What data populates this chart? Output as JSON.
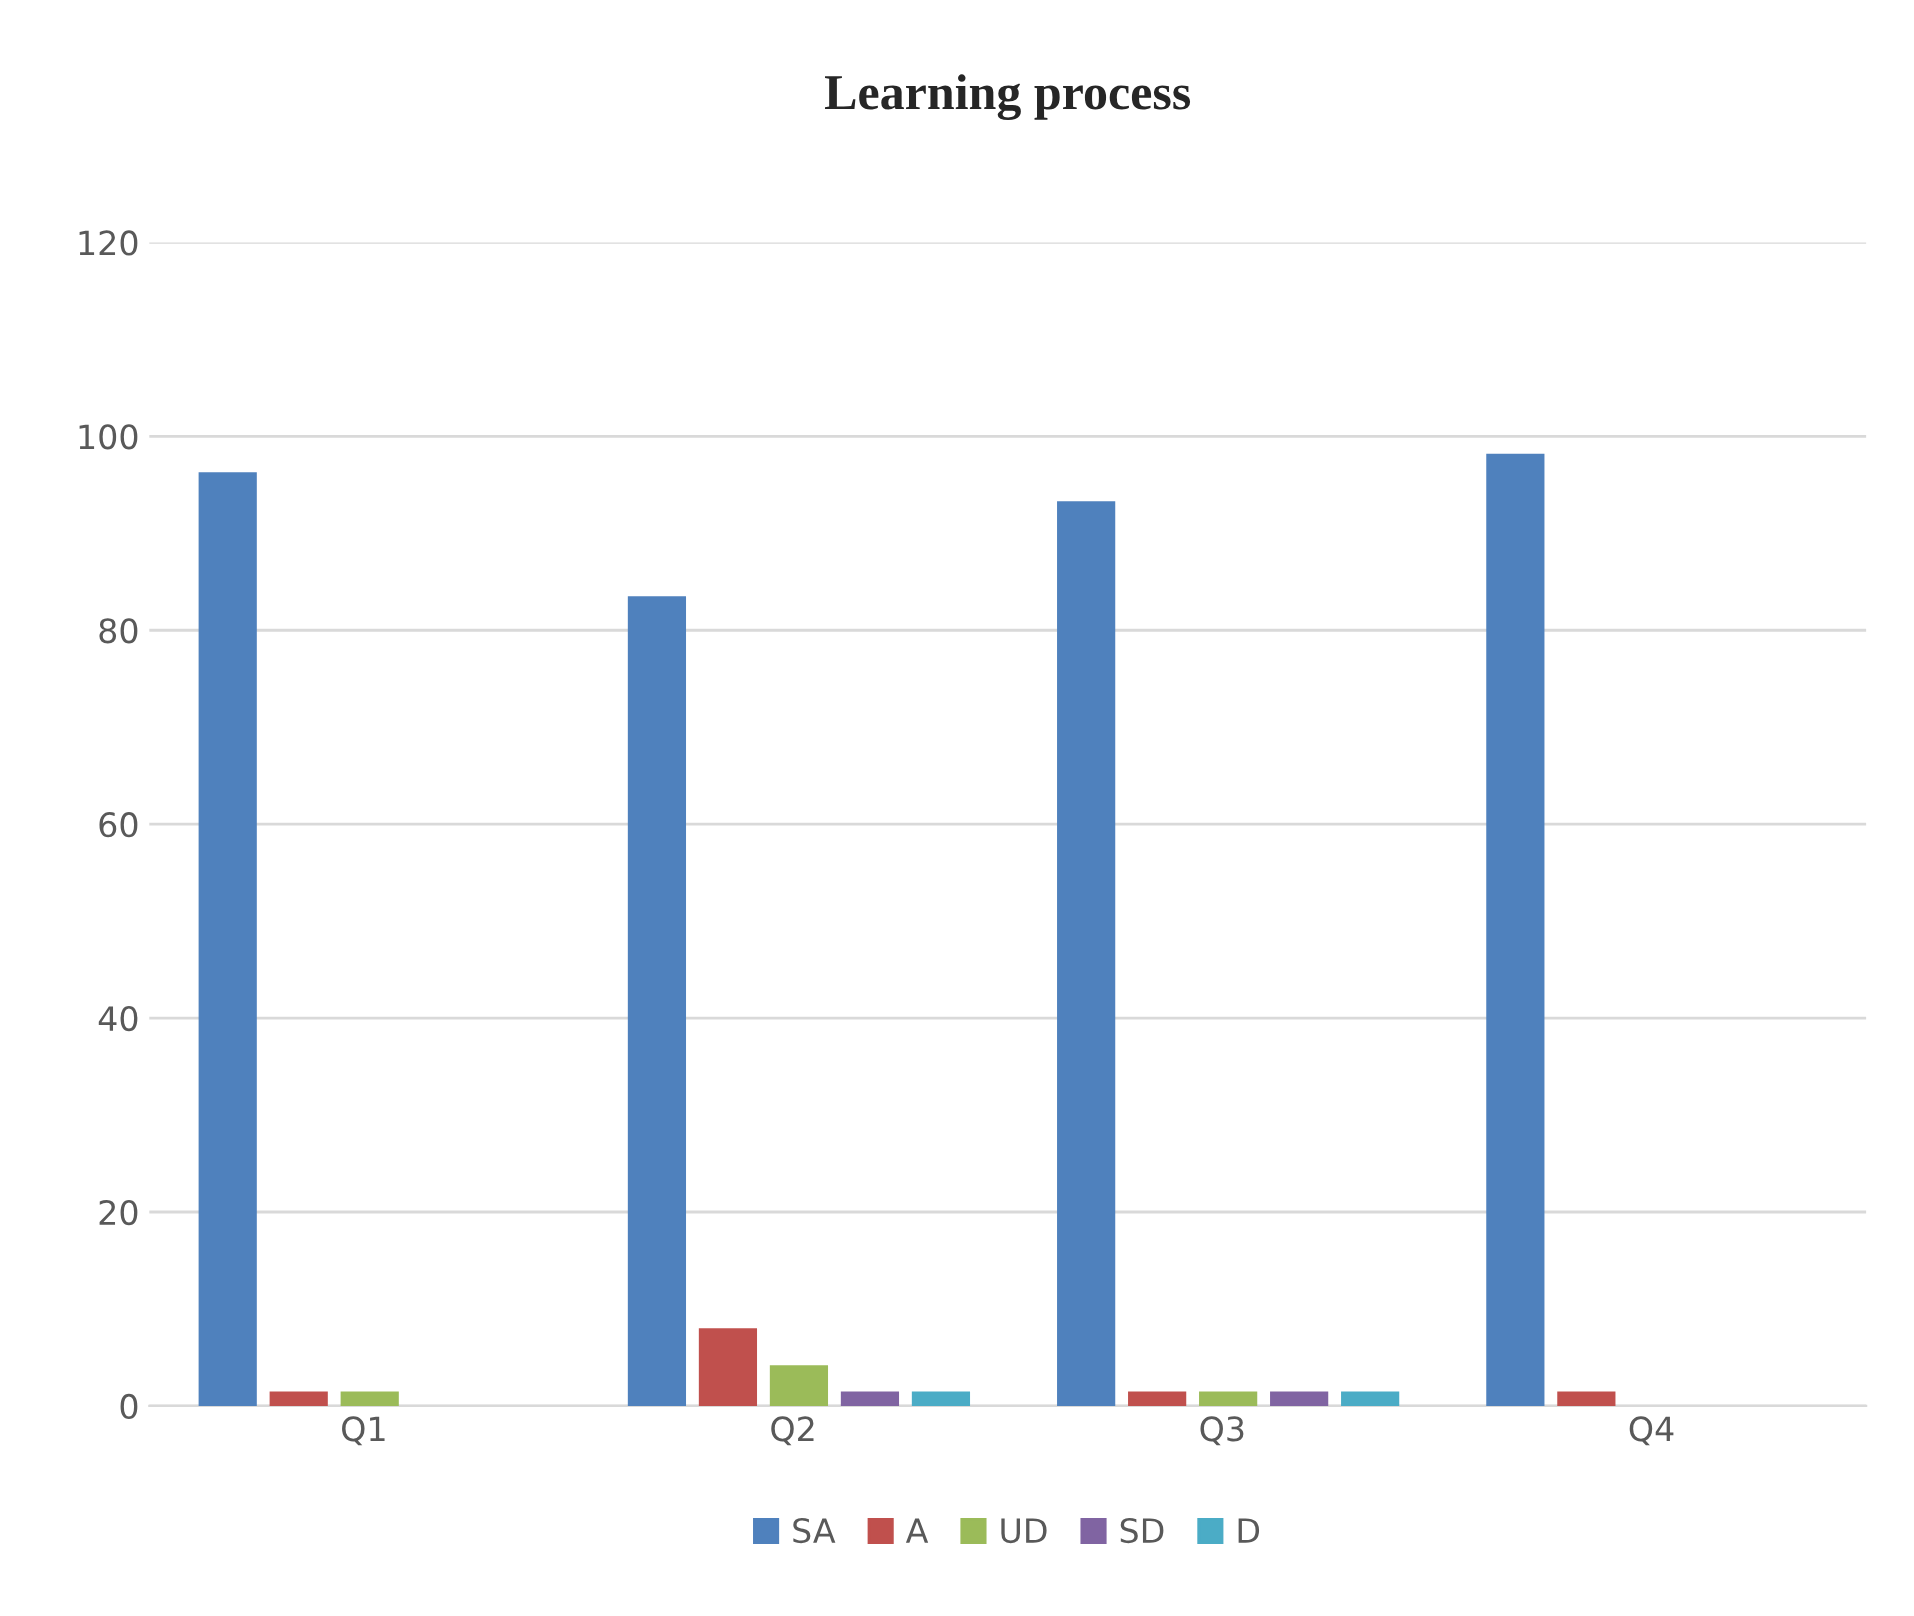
{
  "chart_data": {
    "type": "bar",
    "title": "Learning process",
    "categories": [
      "Q1",
      "Q2",
      "Q3",
      "Q4"
    ],
    "series": [
      {
        "name": "SA",
        "color": "#4f81bd",
        "values": [
          96.3,
          83.5,
          93.3,
          98.2
        ]
      },
      {
        "name": "A",
        "color": "#c0504d",
        "values": [
          1.5,
          8.0,
          1.5,
          1.5
        ]
      },
      {
        "name": "UD",
        "color": "#9bbb59",
        "values": [
          1.5,
          4.2,
          1.5,
          null
        ]
      },
      {
        "name": "SD",
        "color": "#8064a2",
        "values": [
          null,
          1.5,
          1.5,
          null
        ]
      },
      {
        "name": "D",
        "color": "#4bacc6",
        "values": [
          null,
          1.5,
          1.5,
          null
        ]
      }
    ],
    "ylim": [
      0,
      120
    ],
    "yticks": [
      0,
      20,
      40,
      60,
      80,
      100,
      120
    ],
    "grid": "y",
    "legend": "bottom"
  }
}
